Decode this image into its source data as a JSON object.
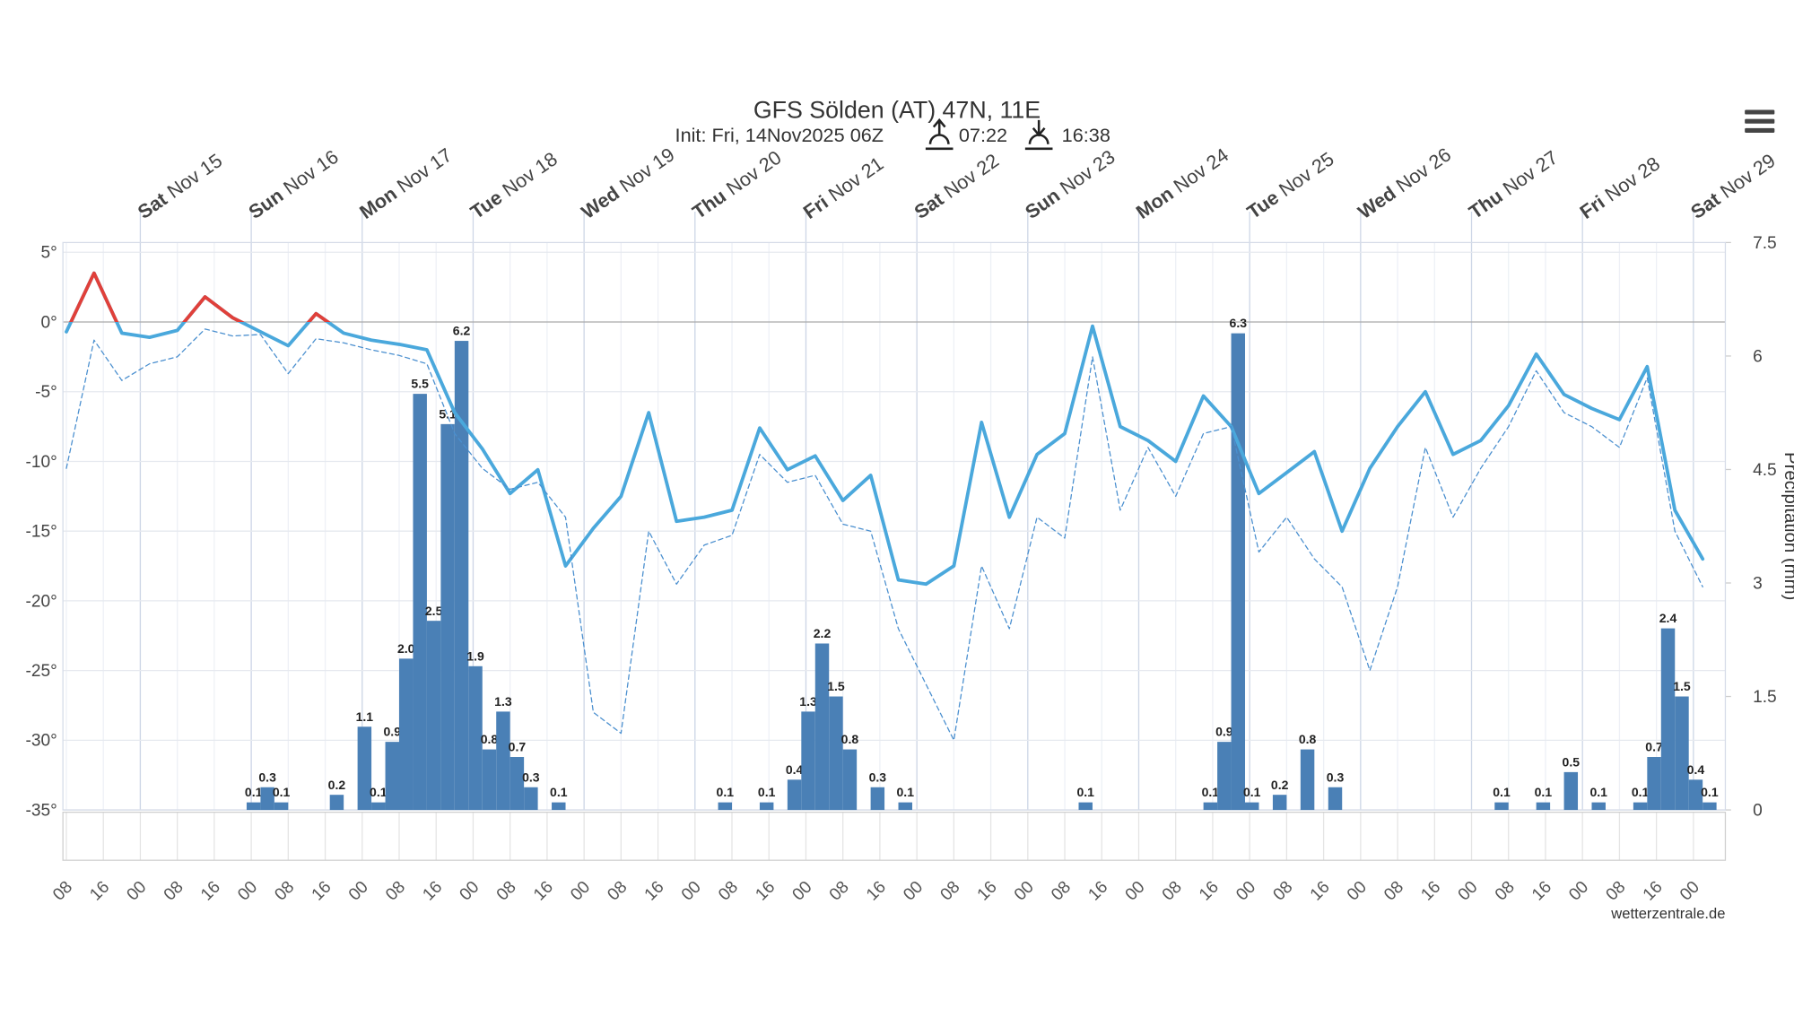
{
  "chart_data": {
    "type": "meteogram",
    "title": "GFS Sölden (AT) 47N, 11E",
    "subtitle": "Init: Fri, 14Nov2025 06Z",
    "sunrise": "07:22",
    "sunset": "16:38",
    "credit": "wetterzentrale.de",
    "y2_label": "Precipitation (mm)",
    "days": [
      {
        "weekday": "Sat",
        "date": "Nov 15"
      },
      {
        "weekday": "Sun",
        "date": "Nov 16"
      },
      {
        "weekday": "Mon",
        "date": "Nov 17"
      },
      {
        "weekday": "Tue",
        "date": "Nov 18"
      },
      {
        "weekday": "Wed",
        "date": "Nov 19"
      },
      {
        "weekday": "Thu",
        "date": "Nov 20"
      },
      {
        "weekday": "Fri",
        "date": "Nov 21"
      },
      {
        "weekday": "Sat",
        "date": "Nov 22"
      },
      {
        "weekday": "Sun",
        "date": "Nov 23"
      },
      {
        "weekday": "Mon",
        "date": "Nov 24"
      },
      {
        "weekday": "Tue",
        "date": "Nov 25"
      },
      {
        "weekday": "Wed",
        "date": "Nov 26"
      },
      {
        "weekday": "Thu",
        "date": "Nov 27"
      },
      {
        "weekday": "Fri",
        "date": "Nov 28"
      },
      {
        "weekday": "Sat",
        "date": "Nov 29"
      }
    ],
    "hour_labels": [
      "08",
      "16",
      "00",
      "08",
      "16",
      "00",
      "08",
      "16",
      "00",
      "08",
      "16",
      "00",
      "08",
      "16",
      "00",
      "08",
      "16",
      "00",
      "08",
      "16",
      "00",
      "08",
      "16",
      "00",
      "08",
      "16",
      "00",
      "08",
      "16",
      "00",
      "08",
      "16",
      "00",
      "08",
      "16",
      "00",
      "08",
      "16",
      "00",
      "08",
      "16",
      "00",
      "08",
      "16",
      "00"
    ],
    "ylim": [
      -35,
      5.7
    ],
    "yticks": [
      {
        "value": 5,
        "label": "5°"
      },
      {
        "value": 0,
        "label": "0°"
      },
      {
        "value": -5,
        "label": "-5°"
      },
      {
        "value": -10,
        "label": "-10°"
      },
      {
        "value": -15,
        "label": "-15°"
      },
      {
        "value": -20,
        "label": "-20°"
      },
      {
        "value": -25,
        "label": "-25°"
      },
      {
        "value": -30,
        "label": "-30°"
      },
      {
        "value": -35,
        "label": "-35°"
      }
    ],
    "y2lim": [
      0,
      7.5
    ],
    "y2ticks": [
      0,
      1.5,
      3,
      4.5,
      6,
      7.5
    ],
    "grid": true,
    "series": [
      {
        "color": "#4aa8dc",
        "above_zero_color": "#e0403a",
        "values": [
          -0.7,
          3.5,
          -0.8,
          -1.1,
          -0.6,
          1.8,
          0.3,
          -0.7,
          -1.7,
          0.6,
          -0.8,
          -1.3,
          -1.6,
          -2.0,
          -6.5,
          -9.1,
          -12.3,
          -10.6,
          -17.5,
          -14.8,
          -12.5,
          -6.5,
          -14.3,
          -14.0,
          -13.5,
          -7.6,
          -10.6,
          -9.6,
          -12.8,
          -11.0,
          -18.5,
          -18.8,
          -17.5,
          -7.2,
          -14.0,
          -9.5,
          -8.0,
          -0.3,
          -7.5,
          -8.5,
          -10.0,
          -5.3,
          -7.5,
          -12.3,
          -10.8,
          -9.3,
          -15.0,
          -10.5,
          -7.5,
          -5.0,
          -9.5,
          -8.5,
          -6.0,
          -2.3,
          -5.2,
          -6.2,
          -7.0,
          -3.2,
          -13.5,
          -17.0
        ]
      },
      {
        "color": "#4a8fcf",
        "dashed": true,
        "values": [
          -10.5,
          -1.3,
          -4.2,
          -3.0,
          -2.5,
          -0.5,
          -1.0,
          -0.9,
          -3.7,
          -1.2,
          -1.5,
          -2.0,
          -2.4,
          -3.0,
          -8.0,
          -10.5,
          -12.0,
          -11.5,
          -14.0,
          -28.0,
          -29.5,
          -15.0,
          -18.8,
          -16.0,
          -15.3,
          -9.5,
          -11.5,
          -11.0,
          -14.5,
          -15.0,
          -22.0,
          -26.0,
          -30.0,
          -17.5,
          -22.0,
          -14.0,
          -15.5,
          -2.5,
          -13.5,
          -9.0,
          -12.5,
          -8.0,
          -7.5,
          -16.5,
          -14.0,
          -17.0,
          -19.0,
          -25.0,
          -19.0,
          -9.0,
          -14.0,
          -10.5,
          -7.5,
          -3.5,
          -6.5,
          -7.5,
          -9.0,
          -4.0,
          -15.0,
          -19.0
        ]
      },
      {
        "color": "#4a80b6",
        "axis": "y2",
        "values": [
          0,
          0,
          0,
          0,
          0,
          0,
          0,
          0,
          0,
          0,
          0,
          0,
          0,
          0.1,
          0.3,
          0.1,
          0,
          0,
          0,
          0.2,
          0,
          1.1,
          0.1,
          0.9,
          2.0,
          5.5,
          2.5,
          5.1,
          6.2,
          1.9,
          0.8,
          1.3,
          0.7,
          0.3,
          0,
          0.1,
          0,
          0,
          0,
          0,
          0,
          0,
          0,
          0,
          0,
          0,
          0,
          0.1,
          0,
          0,
          0.1,
          0,
          0.4,
          1.3,
          2.2,
          1.5,
          0.8,
          0,
          0.3,
          0,
          0.1,
          0,
          0,
          0,
          0,
          0,
          0,
          0,
          0,
          0,
          0,
          0,
          0,
          0.1,
          0,
          0,
          0,
          0,
          0,
          0,
          0,
          0,
          0.1,
          0.9,
          6.3,
          0.1,
          0,
          0.2,
          0,
          0.8,
          0,
          0.3,
          0,
          0,
          0,
          0,
          0,
          0,
          0,
          0,
          0,
          0,
          0,
          0.1,
          0,
          0,
          0.1,
          0,
          0.5,
          0,
          0.1,
          0,
          0,
          0.1,
          0.7,
          2.4,
          1.5,
          0.4,
          0.1,
          0
        ],
        "value_labels": [
          null,
          null,
          null,
          null,
          null,
          null,
          null,
          null,
          null,
          null,
          null,
          null,
          null,
          "0.1",
          "0.3",
          "0.1",
          null,
          null,
          null,
          "0.2",
          null,
          "1.1",
          "0.1",
          "0.9",
          "2.0",
          "5.5",
          "2.5",
          "5.1",
          "6.2",
          "1.9",
          "0.8",
          "1.3",
          "0.7",
          "0.3",
          null,
          "0.1",
          null,
          null,
          null,
          null,
          null,
          null,
          null,
          null,
          null,
          null,
          null,
          "0.1",
          null,
          null,
          "0.1",
          null,
          "0.4",
          "1.3",
          "2.2",
          "1.5",
          "0.8",
          null,
          "0.3",
          null,
          "0.1",
          null,
          null,
          null,
          null,
          null,
          null,
          null,
          null,
          null,
          null,
          null,
          null,
          "0.1",
          null,
          null,
          null,
          null,
          null,
          null,
          null,
          null,
          "0.1",
          "0.9",
          "6.3",
          "0.1",
          null,
          "0.2",
          null,
          "0.8",
          null,
          "0.3",
          null,
          null,
          null,
          null,
          null,
          null,
          null,
          null,
          null,
          null,
          null,
          "0.1",
          null,
          null,
          "0.1",
          null,
          "0.5",
          null,
          "0.1",
          null,
          null,
          "0.1",
          "0.7",
          "2.4",
          "1.5",
          "0.4",
          "0.1",
          null
        ]
      }
    ]
  }
}
